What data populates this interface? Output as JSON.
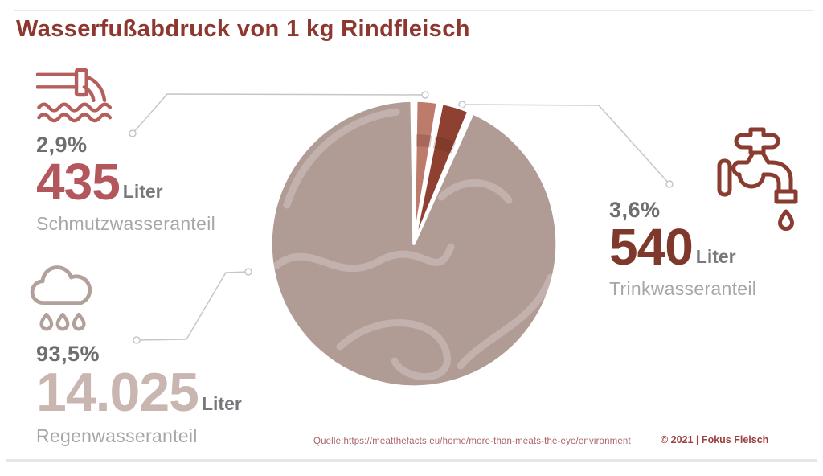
{
  "title": "Wasserfußabdruck von 1 kg Rindfleisch",
  "callouts": {
    "schmutz": {
      "icon": "wastewater-pipe-icon",
      "percent": "2,9%",
      "value": "435",
      "unit": "Liter",
      "label": "Schmutzwasseranteil"
    },
    "regen": {
      "icon": "rain-cloud-icon",
      "percent": "93,5%",
      "value": "14.025",
      "unit": "Liter",
      "label": "Regenwasseranteil"
    },
    "trink": {
      "icon": "faucet-icon",
      "percent": "3,6%",
      "value": "540",
      "unit": "Liter",
      "label": "Trinkwasseranteil"
    }
  },
  "footer": {
    "source": "Quelle:https://meatthefacts.eu/home/more-than-meats-the-eye/environment",
    "copyright": "© 2021 | Fokus Fleisch"
  },
  "colors": {
    "title": "#8d372f",
    "percent_text": "#6d6e71",
    "unit_text": "#77787b",
    "label_text": "#a8a6a7",
    "schmutz_value": "#b4575c",
    "regen_value": "#c9b6b0",
    "trink_value": "#7f382c",
    "source_text": "#ab6466",
    "copyright_text": "#9c403c",
    "connector": "#c6c6c6",
    "pipe_icon": "#b55f5d",
    "cloud_icon": "#b2a19b",
    "faucet_icon": "#8a3c30"
  },
  "chart_data": {
    "type": "pie",
    "title": "Wasserfußabdruck von 1 kg Rindfleisch",
    "unit": "Liter",
    "slices": [
      {
        "id": "schmutzwasser",
        "label": "Schmutzwasseranteil",
        "percent": 2.9,
        "liters": 435,
        "color": "#bd7b6c"
      },
      {
        "id": "trinkwasser",
        "label": "Trinkwasseranteil",
        "percent": 3.6,
        "liters": 540,
        "color": "#8e4130"
      },
      {
        "id": "regenwasser",
        "label": "Regenwasseranteil",
        "percent": 93.5,
        "liters": 14025,
        "color": "#b19c95"
      }
    ],
    "legend_position": "callouts",
    "start_angle_deg": 0,
    "slice_gap_deg": 1.8,
    "grid": false
  }
}
